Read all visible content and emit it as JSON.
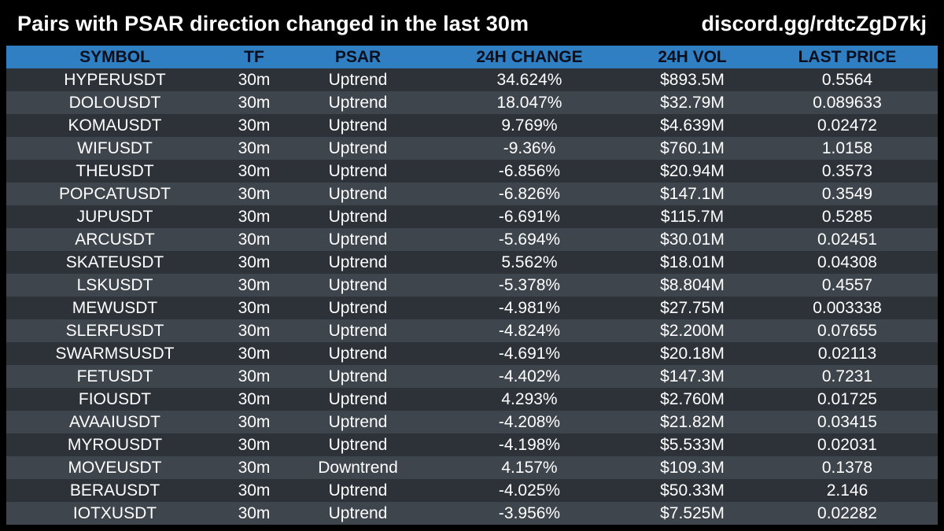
{
  "header": {
    "title": "Pairs with PSAR direction changed in the last 30m",
    "invite": "discord.gg/rdtcZgD7kj"
  },
  "colors": {
    "background": "#000000",
    "header_row": "#2f7fc2",
    "row_dark": "#2d3239",
    "row_light": "#3e454d",
    "text": "#ffffff"
  },
  "table": {
    "columns": [
      "SYMBOL",
      "TF",
      "PSAR",
      "24H CHANGE",
      "24H VOL",
      "LAST PRICE"
    ],
    "rows": [
      [
        "HYPERUSDT",
        "30m",
        "Uptrend",
        "34.624%",
        "$893.5M",
        "0.5564"
      ],
      [
        "DOLOUSDT",
        "30m",
        "Uptrend",
        "18.047%",
        "$32.79M",
        "0.089633"
      ],
      [
        "KOMAUSDT",
        "30m",
        "Uptrend",
        "9.769%",
        "$4.639M",
        "0.02472"
      ],
      [
        "WIFUSDT",
        "30m",
        "Uptrend",
        "-9.36%",
        "$760.1M",
        "1.0158"
      ],
      [
        "THEUSDT",
        "30m",
        "Uptrend",
        "-6.856%",
        "$20.94M",
        "0.3573"
      ],
      [
        "POPCATUSDT",
        "30m",
        "Uptrend",
        "-6.826%",
        "$147.1M",
        "0.3549"
      ],
      [
        "JUPUSDT",
        "30m",
        "Uptrend",
        "-6.691%",
        "$115.7M",
        "0.5285"
      ],
      [
        "ARCUSDT",
        "30m",
        "Uptrend",
        "-5.694%",
        "$30.01M",
        "0.02451"
      ],
      [
        "SKATEUSDT",
        "30m",
        "Uptrend",
        "5.562%",
        "$18.01M",
        "0.04308"
      ],
      [
        "LSKUSDT",
        "30m",
        "Uptrend",
        "-5.378%",
        "$8.804M",
        "0.4557"
      ],
      [
        "MEWUSDT",
        "30m",
        "Uptrend",
        "-4.981%",
        "$27.75M",
        "0.003338"
      ],
      [
        "SLERFUSDT",
        "30m",
        "Uptrend",
        "-4.824%",
        "$2.200M",
        "0.07655"
      ],
      [
        "SWARMSUSDT",
        "30m",
        "Uptrend",
        "-4.691%",
        "$20.18M",
        "0.02113"
      ],
      [
        "FETUSDT",
        "30m",
        "Uptrend",
        "-4.402%",
        "$147.3M",
        "0.7231"
      ],
      [
        "FIOUSDT",
        "30m",
        "Uptrend",
        "4.293%",
        "$2.760M",
        "0.01725"
      ],
      [
        "AVAAIUSDT",
        "30m",
        "Uptrend",
        "-4.208%",
        "$21.82M",
        "0.03415"
      ],
      [
        "MYROUSDT",
        "30m",
        "Uptrend",
        "-4.198%",
        "$5.533M",
        "0.02031"
      ],
      [
        "MOVEUSDT",
        "30m",
        "Downtrend",
        "4.157%",
        "$109.3M",
        "0.1378"
      ],
      [
        "BERAUSDT",
        "30m",
        "Uptrend",
        "-4.025%",
        "$50.33M",
        "2.146"
      ],
      [
        "IOTXUSDT",
        "30m",
        "Uptrend",
        "-3.956%",
        "$7.525M",
        "0.02282"
      ]
    ]
  }
}
